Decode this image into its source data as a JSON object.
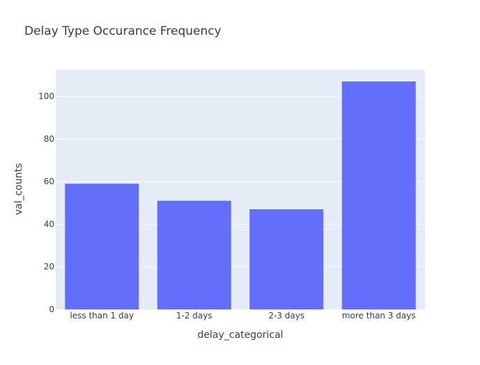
{
  "chart_data": {
    "type": "bar",
    "title": "Delay Type Occurance Frequency",
    "xlabel": "delay_categorical",
    "ylabel": "val_counts",
    "categories": [
      "less than 1 day",
      "1-2 days",
      "2-3 days",
      "more than 3 days"
    ],
    "values": [
      59,
      51,
      47,
      107
    ],
    "ylim": [
      0,
      112.6
    ],
    "yticks": [
      0,
      20,
      40,
      60,
      80,
      100
    ],
    "grid": true,
    "colors": {
      "bar": "#636efa",
      "plot_bg": "#e5ecf6",
      "grid": "#ffffff",
      "text": "#2a3f5f"
    }
  }
}
